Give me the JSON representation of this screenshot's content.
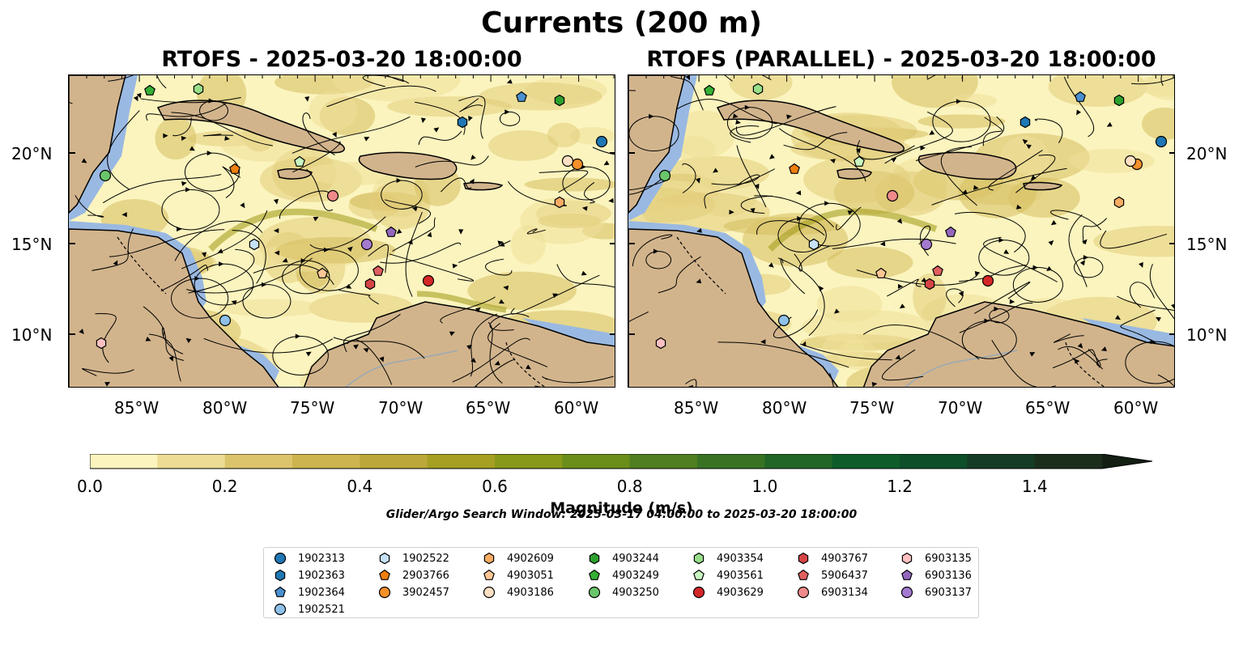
{
  "title": "Currents (200 m)",
  "panels": [
    {
      "title": "RTOFS - 2025-03-20 18:00:00"
    },
    {
      "title": "RTOFS (PARALLEL) - 2025-03-20 18:00:00"
    }
  ],
  "lon_ticks": [
    "85°W",
    "80°W",
    "75°W",
    "70°W",
    "65°W",
    "60°W"
  ],
  "lat_ticks": [
    "20°N",
    "15°N",
    "10°N"
  ],
  "colorbar": {
    "label": "Magnitude (m/s)",
    "ticks": [
      "0.0",
      "0.2",
      "0.4",
      "0.6",
      "0.8",
      "1.0",
      "1.2",
      "1.4"
    ],
    "colors": [
      "#fbf4be",
      "#ecdc94",
      "#dcc46d",
      "#cdb44e",
      "#bca83a",
      "#a59f22",
      "#88991a",
      "#6b8d1a",
      "#4f7f21",
      "#387324",
      "#216626",
      "#0f5c2b",
      "#0d4f29",
      "#153d25",
      "#1b2e1c",
      "#121f12"
    ]
  },
  "search_window": "Glider/Argo Search Window: 2025-03-17 04:00:00 to 2025-03-20 18:00:00",
  "legend": [
    {
      "id": "1902313",
      "marker": "circle",
      "color": "#1f77b4"
    },
    {
      "id": "1902363",
      "marker": "hexagon",
      "color": "#1f77b4"
    },
    {
      "id": "1902364",
      "marker": "pentagon",
      "color": "#4a90d0"
    },
    {
      "id": "1902521",
      "marker": "circle",
      "color": "#8fc1e8"
    },
    {
      "id": "1902522",
      "marker": "hexagon",
      "color": "#c6e2f7"
    },
    {
      "id": "2903766",
      "marker": "pentagon",
      "color": "#f07f0e"
    },
    {
      "id": "3902457",
      "marker": "circle",
      "color": "#f5902a"
    },
    {
      "id": "4902609",
      "marker": "hexagon",
      "color": "#f7ab63"
    },
    {
      "id": "4903051",
      "marker": "pentagon",
      "color": "#fcc795"
    },
    {
      "id": "4903186",
      "marker": "circle",
      "color": "#fde0c4"
    },
    {
      "id": "4903244",
      "marker": "hexagon",
      "color": "#2ca02c"
    },
    {
      "id": "4903249",
      "marker": "pentagon",
      "color": "#35b035"
    },
    {
      "id": "4903250",
      "marker": "circle",
      "color": "#6ac66a"
    },
    {
      "id": "4903354",
      "marker": "hexagon",
      "color": "#98df8a"
    },
    {
      "id": "4903561",
      "marker": "pentagon",
      "color": "#c8f5c0"
    },
    {
      "id": "4903629",
      "marker": "circle",
      "color": "#d62728"
    },
    {
      "id": "4903767",
      "marker": "hexagon",
      "color": "#d64545"
    },
    {
      "id": "5906437",
      "marker": "pentagon",
      "color": "#e06060"
    },
    {
      "id": "6903134",
      "marker": "circle",
      "color": "#f08a8a"
    },
    {
      "id": "6903135",
      "marker": "hexagon",
      "color": "#fcc0c0"
    },
    {
      "id": "6903136",
      "marker": "pentagon",
      "color": "#9467bd"
    },
    {
      "id": "6903137",
      "marker": "circle",
      "color": "#a47ad0"
    }
  ],
  "map_colors": {
    "ocean_low": "#fbf4be",
    "land": "#d2b48c",
    "shelf_water": "#9ab9e2",
    "river": "#9aa9b5"
  }
}
